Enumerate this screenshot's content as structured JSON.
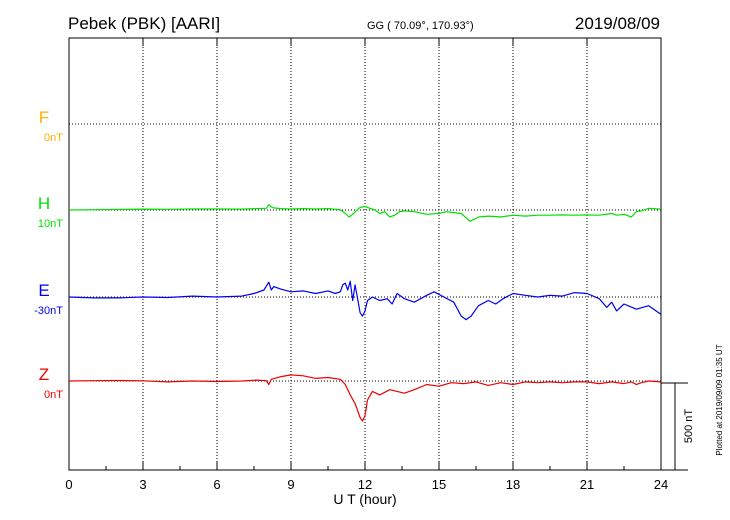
{
  "header": {
    "station": "Pebek (PBK)  [AARI]",
    "coords": "GG ( 70.09°, 170.93°)",
    "date": "2019/08/09"
  },
  "side_note": "Plotted at 2019/09/09 01:35 UT",
  "scale_bar_label": "500 nT",
  "colors": {
    "F": "#ffb000",
    "H": "#00e000",
    "E": "#0000ee",
    "Z": "#ee0000"
  },
  "chart_data": {
    "type": "line",
    "xlabel": "U T (hour)",
    "xlim": [
      0,
      24
    ],
    "xticks": [
      0,
      3,
      6,
      9,
      12,
      15,
      18,
      21,
      24
    ],
    "scale_nT": 500,
    "series": [
      {
        "name": "F",
        "baseline_label": "0nT",
        "x": [],
        "values": []
      },
      {
        "name": "H",
        "baseline_label": "10nT",
        "x": [
          0,
          1,
          2,
          3,
          4,
          5,
          6,
          7,
          7.6,
          8,
          8.1,
          8.2,
          8.3,
          8.6,
          9,
          9.5,
          10,
          10.5,
          11,
          11.2,
          11.35,
          11.5,
          11.6,
          11.8,
          12,
          12.2,
          12.4,
          12.6,
          12.8,
          13,
          13.2,
          13.4,
          13.6,
          14,
          14.5,
          15,
          15.3,
          15.6,
          15.9,
          16.1,
          16.25,
          16.4,
          16.6,
          17,
          17.5,
          18,
          18.5,
          19,
          19.5,
          20,
          20.5,
          21,
          21.5,
          22,
          22.2,
          22.5,
          22.8,
          23,
          23.2,
          23.5,
          24
        ],
        "values": [
          0,
          2,
          3,
          5,
          4,
          6,
          6,
          5,
          8,
          10,
          30,
          18,
          12,
          8,
          6,
          8,
          6,
          8,
          2,
          -20,
          -40,
          -25,
          -10,
          15,
          20,
          10,
          0,
          -20,
          -10,
          -40,
          -30,
          -10,
          -5,
          -10,
          -25,
          -20,
          -10,
          -15,
          -20,
          -45,
          -65,
          -55,
          -40,
          -35,
          -40,
          -30,
          -35,
          -30,
          -30,
          -28,
          -30,
          -28,
          -30,
          -20,
          -30,
          -25,
          -40,
          -10,
          -5,
          10,
          5
        ]
      },
      {
        "name": "E",
        "baseline_label": "-30nT",
        "x": [
          0,
          1,
          2,
          3,
          4,
          5,
          6,
          7,
          7.5,
          7.9,
          8.1,
          8.2,
          8.3,
          8.6,
          9,
          9.5,
          10,
          10.5,
          10.8,
          11,
          11.1,
          11.2,
          11.3,
          11.4,
          11.5,
          11.6,
          11.7,
          11.8,
          11.9,
          12,
          12.1,
          12.3,
          12.6,
          12.9,
          13.1,
          13.3,
          13.6,
          14,
          14.5,
          14.8,
          15.2,
          15.6,
          15.9,
          16.1,
          16.3,
          16.6,
          17,
          17.3,
          17.6,
          18,
          18.5,
          19,
          19.5,
          20,
          20.5,
          21,
          21.5,
          21.8,
          22,
          22.2,
          22.5,
          23,
          23.5,
          24
        ],
        "values": [
          0,
          -5,
          -5,
          0,
          -3,
          5,
          0,
          5,
          20,
          40,
          85,
          40,
          60,
          45,
          30,
          35,
          20,
          35,
          20,
          30,
          70,
          80,
          40,
          90,
          -20,
          70,
          -10,
          -90,
          -110,
          -80,
          -20,
          0,
          -20,
          -10,
          -40,
          20,
          -10,
          -30,
          10,
          30,
          0,
          -30,
          -110,
          -130,
          -110,
          -50,
          -20,
          -40,
          -10,
          20,
          10,
          0,
          10,
          5,
          25,
          20,
          -10,
          -60,
          -30,
          -80,
          -40,
          -70,
          -50,
          -100
        ]
      },
      {
        "name": "Z",
        "baseline_label": "0nT",
        "x": [
          0,
          1,
          2,
          3,
          4,
          5,
          6,
          7,
          7.6,
          8,
          8.1,
          8.2,
          8.6,
          9,
          9.5,
          10,
          10.5,
          11,
          11.2,
          11.4,
          11.6,
          11.8,
          11.9,
          12,
          12.1,
          12.3,
          12.6,
          13,
          13.3,
          13.6,
          14,
          14.5,
          15,
          15.5,
          16,
          16.5,
          17,
          17.5,
          18,
          18.5,
          19,
          19.5,
          20,
          20.5,
          21,
          21.5,
          22,
          22.5,
          22.8,
          23,
          23.2,
          23.5,
          24
        ],
        "values": [
          0,
          2,
          3,
          1,
          -5,
          0,
          -3,
          0,
          5,
          2,
          -20,
          10,
          25,
          35,
          30,
          15,
          20,
          10,
          -20,
          -80,
          -130,
          -210,
          -230,
          -200,
          -110,
          -60,
          -80,
          -50,
          -60,
          -70,
          -50,
          -20,
          -30,
          -10,
          -15,
          -5,
          -25,
          -10,
          -20,
          -5,
          -10,
          -5,
          -10,
          -5,
          -5,
          -15,
          -5,
          -15,
          -5,
          -20,
          -10,
          0,
          -5
        ]
      }
    ]
  }
}
